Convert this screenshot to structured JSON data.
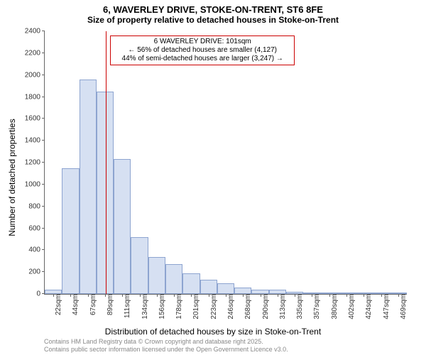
{
  "title_main": "6, WAVERLEY DRIVE, STOKE-ON-TRENT, ST6 8FE",
  "title_sub": "Size of property relative to detached houses in Stoke-on-Trent",
  "ylabel": "Number of detached properties",
  "xlabel": "Distribution of detached houses by size in Stoke-on-Trent",
  "footer1": "Contains HM Land Registry data © Crown copyright and database right 2025.",
  "footer2": "Contains public sector information licensed under the Open Government Licence v3.0.",
  "annot_line1": "6 WAVERLEY DRIVE: 101sqm",
  "annot_line2": "← 56% of detached houses are smaller (4,127)",
  "annot_line3": "44% of semi-detached houses are larger (3,247) →",
  "chart": {
    "type": "histogram",
    "ylim": [
      0,
      2400
    ],
    "ytick_step": 200,
    "bar_fill": "#d6e0f2",
    "bar_stroke": "#8da4d0",
    "marker_color": "#cc0000",
    "background_color": "#ffffff",
    "axis_color": "#666666",
    "title_fontsize": 13,
    "label_fontsize": 12,
    "tick_fontsize": 10,
    "marker_bin_index": 3,
    "marker_fraction_in_bin": 0.55,
    "categories": [
      "22sqm",
      "44sqm",
      "67sqm",
      "89sqm",
      "111sqm",
      "134sqm",
      "156sqm",
      "178sqm",
      "201sqm",
      "223sqm",
      "246sqm",
      "268sqm",
      "290sqm",
      "313sqm",
      "335sqm",
      "357sqm",
      "380sqm",
      "402sqm",
      "424sqm",
      "447sqm",
      "469sqm"
    ],
    "values": [
      40,
      1150,
      1960,
      1850,
      1230,
      520,
      340,
      275,
      185,
      130,
      100,
      60,
      40,
      40,
      20,
      5,
      10,
      5,
      1,
      5,
      5
    ]
  }
}
